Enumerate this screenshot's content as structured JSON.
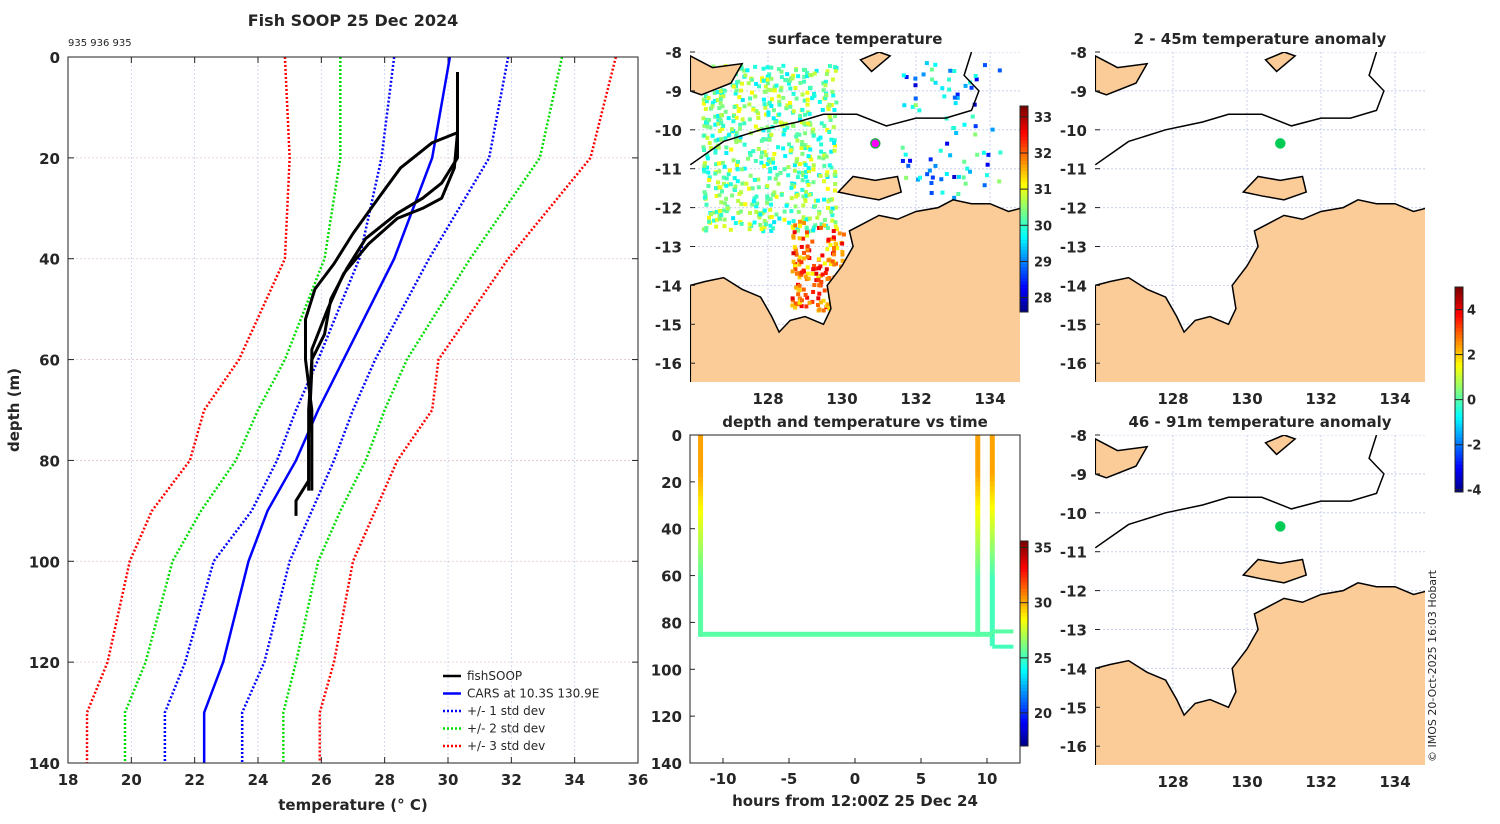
{
  "chart_data": [
    {
      "type": "line",
      "title": "Fish SOOP 25 Dec 2024",
      "subtitle": "935 936 935",
      "xlabel": "temperature (° C)",
      "ylabel": "depth (m)",
      "xlim": [
        18,
        36
      ],
      "ylim": [
        140,
        0
      ],
      "xticks": [
        18,
        20,
        22,
        24,
        26,
        28,
        30,
        32,
        34,
        36
      ],
      "yticks": [
        0,
        20,
        40,
        60,
        80,
        100,
        120,
        140
      ],
      "grid": true,
      "legend": "bottom-right",
      "depths": [
        0,
        20,
        40,
        60,
        70,
        80,
        90,
        100,
        120,
        130,
        140
      ],
      "series": [
        {
          "name": "CARS at 10.3S 130.9E",
          "style": "solid",
          "color": "#0000ff",
          "values": [
            30.06,
            29.5,
            28.3,
            26.7,
            25.9,
            25.2,
            24.3,
            23.7,
            22.9,
            22.3,
            22.3
          ]
        },
        {
          "name": "+/- 1 std dev",
          "style": "dotted",
          "color": "#0000ff",
          "values": [
            28.3,
            27.9,
            27.2,
            25.9,
            25.2,
            24.6,
            23.8,
            22.6,
            21.7,
            21.06,
            21.06
          ]
        },
        {
          "name": "+/- 1 std dev upper",
          "style": "dotted",
          "color": "#0000ff",
          "legend": false,
          "values": [
            31.9,
            31.3,
            29.4,
            27.7,
            27.0,
            26.4,
            25.7,
            25.0,
            24.2,
            23.5,
            23.5
          ]
        },
        {
          "name": "+/- 2 std dev",
          "style": "dotted",
          "color": "#00dd00",
          "values": [
            26.6,
            26.6,
            26.1,
            24.85,
            24.0,
            23.3,
            22.2,
            21.3,
            20.45,
            19.8,
            19.8
          ]
        },
        {
          "name": "+/- 2 std dev upper",
          "style": "dotted",
          "color": "#00dd00",
          "legend": false,
          "values": [
            33.6,
            32.9,
            30.7,
            28.7,
            28.0,
            27.4,
            26.6,
            25.9,
            25.2,
            24.8,
            24.8
          ]
        },
        {
          "name": "+/- 3 std dev",
          "style": "dotted",
          "color": "#ff0000",
          "values": [
            24.85,
            25.0,
            24.85,
            23.4,
            22.3,
            21.85,
            20.65,
            19.95,
            19.25,
            18.6,
            18.6
          ]
        },
        {
          "name": "+/- 3 std dev upper",
          "style": "dotted",
          "color": "#ff0000",
          "legend": false,
          "values": [
            35.3,
            34.5,
            31.9,
            29.7,
            29.5,
            28.4,
            27.7,
            27.0,
            26.4,
            25.95,
            25.95
          ]
        }
      ],
      "profiles": {
        "name": "fishSOOP",
        "color": "#000000",
        "points": [
          [
            [
              30.3,
              3
            ],
            [
              30.3,
              15
            ],
            [
              30.2,
              22
            ],
            [
              29.8,
              28
            ],
            [
              29.2,
              30
            ],
            [
              28.4,
              32
            ],
            [
              27.5,
              37
            ],
            [
              26.7,
              43
            ],
            [
              26.2,
              50
            ],
            [
              25.7,
              58
            ],
            [
              25.7,
              62
            ],
            [
              25.6,
              75
            ],
            [
              25.6,
              86
            ]
          ],
          [
            [
              30.3,
              3
            ],
            [
              30.3,
              15
            ],
            [
              29.5,
              17
            ],
            [
              28.5,
              22
            ],
            [
              27.8,
              28
            ],
            [
              27.0,
              35
            ],
            [
              26.4,
              41
            ],
            [
              25.8,
              46
            ],
            [
              25.5,
              52
            ],
            [
              25.5,
              60
            ],
            [
              25.7,
              70
            ],
            [
              25.7,
              86
            ]
          ],
          [
            [
              30.3,
              3
            ],
            [
              30.3,
              20
            ],
            [
              29.8,
              25
            ],
            [
              29.2,
              28
            ],
            [
              28.4,
              31
            ],
            [
              27.4,
              36
            ],
            [
              26.8,
              42
            ],
            [
              26.3,
              48
            ],
            [
              26.1,
              55
            ],
            [
              25.7,
              60
            ],
            [
              25.6,
              70
            ],
            [
              25.6,
              84
            ],
            [
              25.2,
              88
            ],
            [
              25.2,
              91
            ]
          ]
        ]
      }
    },
    {
      "type": "heatmap",
      "title": "surface temperature",
      "colorbar": {
        "ticks": [
          28,
          29,
          30,
          31,
          32,
          33
        ],
        "range": [
          27.6,
          33.3
        ]
      },
      "xticks": [
        128,
        130,
        132,
        134
      ],
      "yticks": [
        -8,
        -9,
        -10,
        -11,
        -12,
        -13,
        -14,
        -15,
        -16
      ],
      "marker": {
        "lon": 130.9,
        "lat": -10.35,
        "color": "#ff00ff"
      }
    },
    {
      "type": "heatmap",
      "title": "2 - 45m temperature anomaly",
      "xticks": [
        128,
        130,
        132,
        134
      ],
      "yticks": [
        -8,
        -9,
        -10,
        -11,
        -12,
        -13,
        -14,
        -15,
        -16
      ],
      "marker": {
        "lon": 130.9,
        "lat": -10.35,
        "color": "#00cc55"
      }
    },
    {
      "type": "heatmap",
      "title": "46 - 91m temperature anomaly",
      "xticks": [
        128,
        130,
        132,
        134
      ],
      "yticks": [
        -8,
        -9,
        -10,
        -11,
        -12,
        -13,
        -14,
        -15,
        -16
      ],
      "marker": {
        "lon": 130.9,
        "lat": -10.35,
        "color": "#00cc55"
      },
      "colorbar": {
        "ticks": [
          4,
          2,
          0,
          -2,
          -4
        ],
        "range": [
          -4.1,
          5
        ]
      }
    },
    {
      "type": "scatter",
      "title": "depth and temperature vs time",
      "xlabel": "hours from 12:00Z 25 Dec 24",
      "xticks": [
        -10,
        -5,
        0,
        5,
        10
      ],
      "yticks": [
        0,
        20,
        40,
        60,
        80,
        100,
        120,
        140
      ],
      "xlim": [
        -12.5,
        12.5
      ],
      "ylim": [
        140,
        0
      ],
      "colorbar": {
        "ticks": [
          20,
          25,
          30,
          35
        ],
        "range": [
          17,
          35.6
        ]
      },
      "casts": [
        {
          "hour": -11.7,
          "surface_temp": 30.3,
          "bottom_temp": 25.6,
          "bottom_depth": 85
        },
        {
          "hour": 9.3,
          "surface_temp": 30.3,
          "bottom_temp": 25.6,
          "bottom_depth": 85
        },
        {
          "hour": 10.4,
          "surface_temp": 30.3,
          "bottom_temp": 25.2,
          "bottom_depth": 90
        }
      ]
    }
  ],
  "credit": "© IMOS 20-Oct-2025 16:03 Hobart"
}
